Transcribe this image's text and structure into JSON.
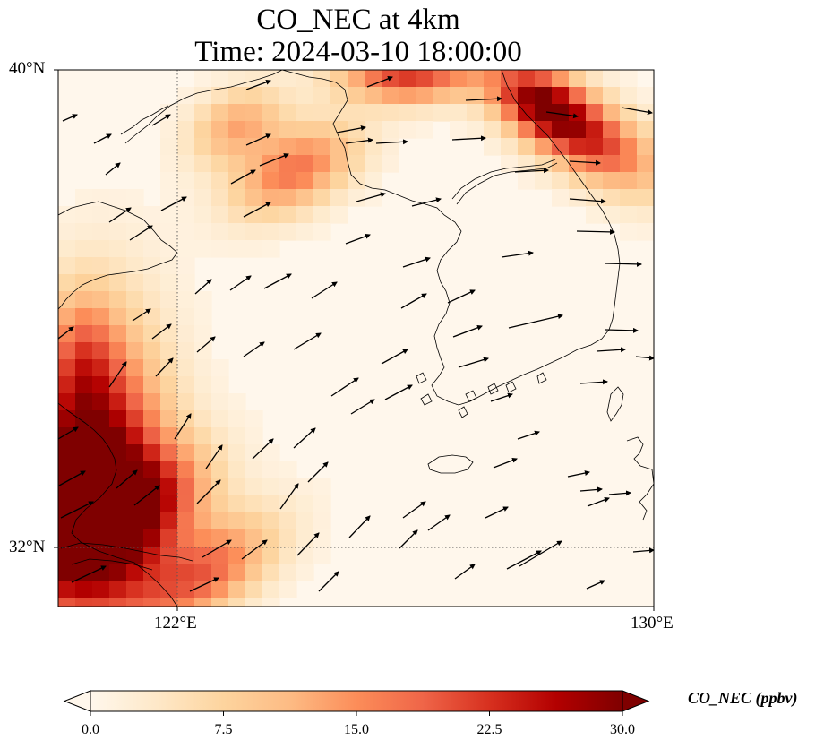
{
  "title": {
    "line1": "CO_NEC at 4km",
    "line2": "Time: 2024-03-10 18:00:00"
  },
  "map": {
    "lat_range": [
      31.0,
      40.0
    ],
    "lon_range": [
      120.0,
      130.0
    ],
    "lat_ticks": [
      {
        "value": 40,
        "label": "40°N"
      },
      {
        "value": 32,
        "label": "32°N"
      }
    ],
    "lon_ticks": [
      {
        "value": 122,
        "label": "122°E"
      },
      {
        "value": 130,
        "label": "130°E"
      }
    ],
    "gridlines": "dotted",
    "features": [
      "coastlines",
      "wind-vectors",
      "CO concentration field"
    ]
  },
  "colorbar": {
    "label": "CO_NEC (ppbv)",
    "min": 0.0,
    "max": 30.0,
    "ticks": [
      "0.0",
      "7.5",
      "15.0",
      "22.5",
      "30.0"
    ],
    "colormap": "OrRd",
    "colors": [
      "#fff7ec",
      "#fee8c8",
      "#fdd49e",
      "#fdbb84",
      "#fc8d59",
      "#ef6548",
      "#d7301f",
      "#b30000",
      "#7f0000"
    ],
    "extend": "both"
  }
}
